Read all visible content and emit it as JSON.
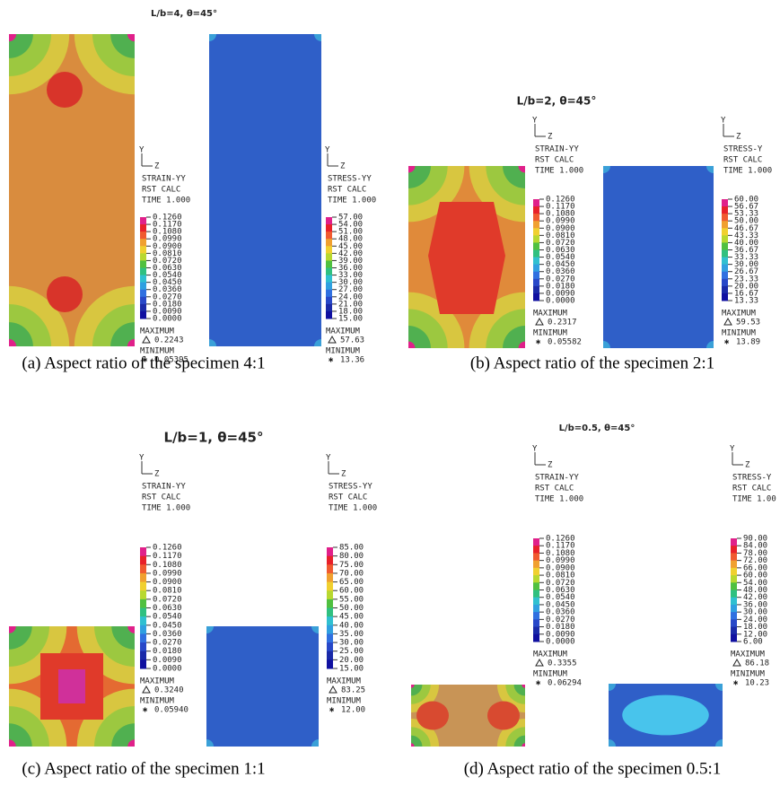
{
  "panels": [
    {
      "title": "L/b=4,  θ=45°",
      "caption": "(a)  Aspect ratio of the specimen 4:1",
      "strain": {
        "axes": [
          "Y",
          "Z"
        ],
        "header": [
          "STRAIN-YY",
          "RST CALC",
          "TIME 1.000"
        ],
        "levels": [
          "0.1260",
          "0.1170",
          "0.1080",
          "0.0990",
          "0.0900",
          "0.0810",
          "0.0720",
          "0.0630",
          "0.0540",
          "0.0450",
          "0.0360",
          "0.0270",
          "0.0180",
          "0.0090",
          "0.0000"
        ],
        "max_label": "MAXIMUM",
        "max_value": "0.2243",
        "min_label": "MINIMUM",
        "min_value": "0.05395"
      },
      "stress": {
        "axes": [
          "Y",
          "Z"
        ],
        "header": [
          "STRESS-YY",
          "RST CALC",
          "TIME 1.000"
        ],
        "levels": [
          "57.00",
          "54.00",
          "51.00",
          "48.00",
          "45.00",
          "42.00",
          "39.00",
          "36.00",
          "33.00",
          "30.00",
          "27.00",
          "24.00",
          "21.00",
          "18.00",
          "15.00"
        ],
        "max_label": "MAXIMUM",
        "max_value": "57.63",
        "min_label": "MINIMUM",
        "min_value": "13.36"
      }
    },
    {
      "title": "L/b=2,  θ=45°",
      "caption": "(b)  Aspect ratio of the specimen 2:1",
      "strain": {
        "axes": [
          "Y",
          "Z"
        ],
        "header": [
          "STRAIN-YY",
          "RST CALC",
          "TIME 1.000"
        ],
        "levels": [
          "0.1260",
          "0.1170",
          "0.1080",
          "0.0990",
          "0.0900",
          "0.0810",
          "0.0720",
          "0.0630",
          "0.0540",
          "0.0450",
          "0.0360",
          "0.0270",
          "0.0180",
          "0.0090",
          "0.0000"
        ],
        "max_label": "MAXIMUM",
        "max_value": "0.2317",
        "min_label": "MINIMUM",
        "min_value": "0.05582"
      },
      "stress": {
        "axes": [
          "Y",
          "Z"
        ],
        "header": [
          "STRESS-Y",
          "RST CALC",
          "TIME 1.000"
        ],
        "levels": [
          "60.00",
          "56.67",
          "53.33",
          "50.00",
          "46.67",
          "43.33",
          "40.00",
          "36.67",
          "33.33",
          "30.00",
          "26.67",
          "23.33",
          "20.00",
          "16.67",
          "13.33"
        ],
        "max_label": "MAXIMUM",
        "max_value": "59.53",
        "min_label": "MINIMUM",
        "min_value": "13.89"
      }
    },
    {
      "title": "L/b=1,  θ=45°",
      "caption": "(c)  Aspect ratio of the specimen 1:1",
      "strain": {
        "axes": [
          "Y",
          "Z"
        ],
        "header": [
          "STRAIN-YY",
          "RST CALC",
          "TIME 1.000"
        ],
        "levels": [
          "0.1260",
          "0.1170",
          "0.1080",
          "0.0990",
          "0.0900",
          "0.0810",
          "0.0720",
          "0.0630",
          "0.0540",
          "0.0450",
          "0.0360",
          "0.0270",
          "0.0180",
          "0.0090",
          "0.0000"
        ],
        "max_label": "MAXIMUM",
        "max_value": "0.3240",
        "min_label": "MINIMUM",
        "min_value": "0.05940"
      },
      "stress": {
        "axes": [
          "Y",
          "Z"
        ],
        "header": [
          "STRESS-YY",
          "RST CALC",
          "TIME 1.000"
        ],
        "levels": [
          "85.00",
          "80.00",
          "75.00",
          "70.00",
          "65.00",
          "60.00",
          "55.00",
          "50.00",
          "45.00",
          "40.00",
          "35.00",
          "30.00",
          "25.00",
          "20.00",
          "15.00"
        ],
        "max_label": "MAXIMUM",
        "max_value": "83.25",
        "min_label": "MINIMUM",
        "min_value": "12.00"
      }
    },
    {
      "title": "L/b=0.5,  θ=45°",
      "caption": "(d)  Aspect ratio of the specimen 0.5:1",
      "strain": {
        "axes": [
          "Y",
          "Z"
        ],
        "header": [
          "STRAIN-YY",
          "RST CALC",
          "TIME 1.000"
        ],
        "levels": [
          "0.1260",
          "0.1170",
          "0.1080",
          "0.0990",
          "0.0900",
          "0.0810",
          "0.0720",
          "0.0630",
          "0.0540",
          "0.0450",
          "0.0360",
          "0.0270",
          "0.0180",
          "0.0090",
          "0.0000"
        ],
        "max_label": "MAXIMUM",
        "max_value": "0.3355",
        "min_label": "MINIMUM",
        "min_value": "0.06294"
      },
      "stress": {
        "axes": [
          "Y",
          "Z"
        ],
        "header": [
          "STRESS-Y",
          "RST CALC",
          "TIME 1.00"
        ],
        "levels": [
          "90.00",
          "84.00",
          "78.00",
          "72.00",
          "66.00",
          "60.00",
          "54.00",
          "48.00",
          "42.00",
          "36.00",
          "30.00",
          "24.00",
          "18.00",
          "12.00",
          "6.00"
        ],
        "max_label": "MAXIMUM",
        "max_value": "86.18",
        "min_label": "MINIMUM",
        "min_value": "10.23"
      }
    }
  ]
}
